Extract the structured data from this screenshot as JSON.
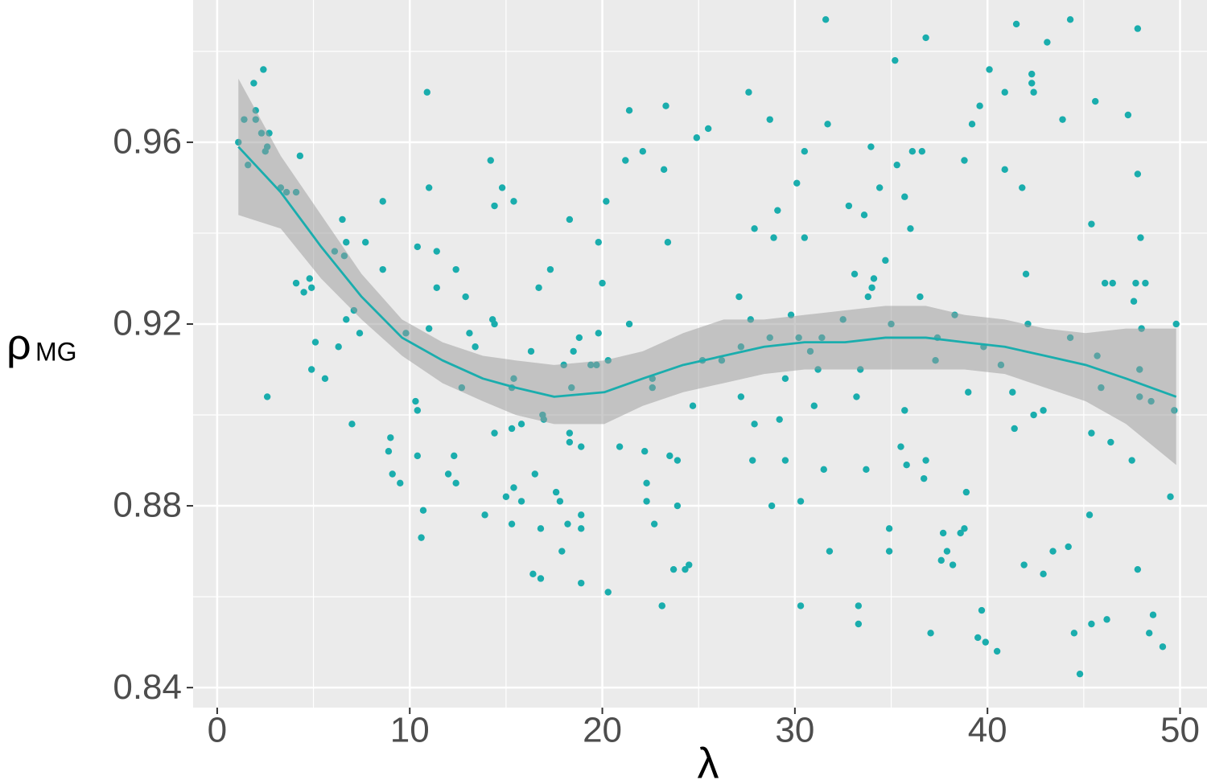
{
  "chart_data": {
    "type": "scatter",
    "xlabel": "λ",
    "ylabel": "ρ",
    "ylabel_subscript": "MG",
    "xlim": [
      -1.25,
      51.4
    ],
    "ylim": [
      0.8356,
      0.9913
    ],
    "xticks": [
      0,
      10,
      20,
      30,
      40,
      50
    ],
    "yticks": [
      0.84,
      0.88,
      0.92,
      0.96
    ],
    "xminor": [
      5,
      15,
      25,
      35,
      45
    ],
    "yminor": [
      0.86,
      0.9,
      0.94,
      0.98
    ],
    "grid": true,
    "color": "#1aadad",
    "x": [
      1.1,
      1.4,
      1.6,
      1.9,
      2.0,
      2.0,
      2.3,
      2.4,
      2.5,
      2.6,
      2.7,
      2.6,
      3.3,
      3.6,
      4.1,
      4.3,
      4.1,
      4.5,
      4.8,
      4.9,
      4.9,
      5.1,
      5.6,
      6.1,
      6.3,
      6.5,
      6.6,
      6.7,
      6.7,
      7.1,
      7.0,
      7.4,
      7.7,
      8.6,
      8.6,
      9.0,
      8.9,
      9.1,
      9.5,
      9.8,
      10.3,
      10.4,
      10.4,
      10.4,
      10.7,
      10.6,
      10.9,
      11.0,
      11.0,
      11.4,
      11.4,
      12.0,
      12.3,
      12.4,
      12.4,
      12.7,
      12.9,
      13.1,
      13.4,
      13.9,
      14.2,
      14.3,
      14.4,
      14.4,
      14.4,
      14.8,
      15.0,
      15.3,
      15.3,
      15.3,
      15.4,
      15.4,
      15.4,
      15.8,
      15.8,
      16.3,
      16.4,
      16.5,
      16.7,
      16.8,
      16.8,
      16.9,
      16.96,
      17.3,
      17.6,
      17.8,
      17.9,
      18.0,
      18.2,
      18.3,
      18.3,
      18.3,
      18.4,
      18.5,
      18.8,
      18.9,
      18.9,
      18.9,
      18.9,
      19.4,
      19.7,
      19.8,
      19.8,
      20.0,
      20.2,
      20.3,
      20.3,
      20.9,
      21.2,
      21.4,
      21.4,
      22.1,
      22.2,
      22.3,
      22.3,
      22.6,
      22.6,
      22.7,
      23.1,
      23.1,
      23.2,
      23.3,
      23.4,
      23.5,
      23.7,
      23.9,
      23.9,
      24.3,
      24.5,
      24.7,
      24.9,
      25.5,
      25.2,
      26.2,
      27.1,
      27.2,
      27.2,
      27.6,
      27.7,
      27.8,
      27.9,
      27.9,
      28.7,
      28.7,
      28.8,
      28.9,
      29.1,
      29.2,
      29.5,
      29.5,
      29.8,
      30.1,
      30.2,
      30.3,
      30.3,
      30.5,
      30.5,
      30.8,
      31.0,
      31.2,
      31.4,
      31.5,
      31.6,
      31.7,
      31.8,
      32.5,
      32.8,
      33.1,
      33.2,
      33.3,
      33.3,
      33.4,
      33.6,
      33.7,
      33.8,
      33.95,
      34.1,
      34.0,
      34.4,
      34.7,
      34.9,
      34.9,
      35.0,
      35.2,
      35.3,
      35.5,
      35.7,
      35.7,
      35.8,
      36.0,
      36.1,
      36.5,
      36.6,
      36.7,
      36.8,
      36.8,
      37.05,
      37.3,
      37.4,
      37.6,
      37.7,
      37.9,
      38.2,
      38.3,
      38.6,
      38.8,
      38.8,
      38.9,
      39.0,
      39.2,
      39.5,
      39.6,
      39.7,
      39.8,
      39.9,
      40.1,
      40.5,
      40.7,
      40.9,
      40.9,
      41.3,
      41.4,
      41.5,
      41.8,
      41.9,
      42.0,
      42.1,
      42.3,
      42.3,
      42.4,
      42.4,
      42.9,
      42.9,
      43.1,
      43.4,
      43.9,
      44.2,
      44.3,
      44.3,
      44.5,
      44.8,
      45.3,
      45.4,
      45.4,
      45.4,
      45.6,
      45.7,
      45.9,
      46.1,
      46.2,
      46.4,
      46.5,
      47.3,
      47.5,
      47.6,
      47.7,
      47.8,
      47.8,
      47.8,
      47.9,
      47.95,
      47.9,
      48.0,
      48.2,
      48.4,
      48.5,
      48.6,
      49.1,
      49.5,
      49.7,
      49.8
    ],
    "values": [
      0.96,
      0.965,
      0.955,
      0.973,
      0.967,
      0.965,
      0.962,
      0.976,
      0.958,
      0.959,
      0.962,
      0.904,
      0.95,
      0.949,
      0.949,
      0.957,
      0.929,
      0.927,
      0.93,
      0.928,
      0.91,
      0.916,
      0.908,
      0.936,
      0.915,
      0.943,
      0.935,
      0.938,
      0.921,
      0.923,
      0.898,
      0.918,
      0.938,
      0.947,
      0.932,
      0.895,
      0.892,
      0.887,
      0.885,
      0.918,
      0.903,
      0.901,
      0.937,
      0.891,
      0.879,
      0.873,
      0.971,
      0.919,
      0.95,
      0.936,
      0.928,
      0.887,
      0.891,
      0.932,
      0.885,
      0.906,
      0.926,
      0.918,
      0.915,
      0.878,
      0.956,
      0.921,
      0.92,
      0.946,
      0.896,
      0.95,
      0.882,
      0.906,
      0.897,
      0.876,
      0.947,
      0.884,
      0.908,
      0.881,
      0.898,
      0.914,
      0.865,
      0.887,
      0.928,
      0.875,
      0.864,
      0.9,
      0.899,
      0.932,
      0.883,
      0.881,
      0.87,
      0.911,
      0.876,
      0.894,
      0.943,
      0.896,
      0.906,
      0.914,
      0.917,
      0.893,
      0.878,
      0.875,
      0.863,
      0.911,
      0.911,
      0.918,
      0.938,
      0.929,
      0.947,
      0.912,
      0.861,
      0.893,
      0.956,
      0.967,
      0.92,
      0.958,
      0.892,
      0.885,
      0.881,
      0.908,
      0.906,
      0.876,
      0.858,
      0.858,
      0.954,
      0.968,
      0.938,
      0.891,
      0.866,
      0.89,
      0.88,
      0.866,
      0.867,
      0.902,
      0.961,
      0.963,
      0.912,
      0.912,
      0.926,
      0.915,
      0.904,
      0.971,
      0.921,
      0.89,
      0.898,
      0.941,
      0.917,
      0.965,
      0.88,
      0.939,
      0.945,
      0.899,
      0.908,
      0.89,
      0.922,
      0.951,
      0.917,
      0.881,
      0.858,
      0.939,
      0.958,
      0.914,
      0.902,
      0.91,
      0.917,
      0.888,
      0.987,
      0.964,
      0.87,
      0.921,
      0.946,
      0.931,
      0.904,
      0.858,
      0.854,
      0.91,
      0.944,
      0.888,
      0.926,
      0.959,
      0.93,
      0.928,
      0.95,
      0.934,
      0.875,
      0.87,
      0.92,
      0.978,
      0.955,
      0.893,
      0.948,
      0.901,
      0.889,
      0.941,
      0.958,
      0.926,
      0.958,
      0.886,
      0.89,
      0.983,
      0.852,
      0.912,
      0.917,
      0.868,
      0.874,
      0.87,
      0.867,
      0.922,
      0.874,
      0.875,
      0.956,
      0.883,
      0.905,
      0.964,
      0.851,
      0.968,
      0.857,
      0.915,
      0.85,
      0.976,
      0.848,
      0.911,
      0.954,
      0.971,
      0.905,
      0.897,
      0.986,
      0.95,
      0.867,
      0.931,
      0.92,
      0.975,
      0.973,
      0.971,
      0.9,
      0.865,
      0.901,
      0.982,
      0.87,
      0.965,
      0.871,
      0.987,
      0.917,
      0.852,
      0.843,
      0.878,
      0.942,
      0.854,
      0.896,
      0.969,
      0.913,
      0.906,
      0.929,
      0.855,
      0.894,
      0.929,
      0.966,
      0.89,
      0.925,
      0.929,
      0.985,
      0.953,
      0.866,
      0.91,
      0.939,
      0.904,
      0.919,
      0.929,
      0.852,
      0.903,
      0.856,
      0.849,
      0.882,
      0.901,
      0.92
    ],
    "smooth": {
      "color": "#1aadad",
      "band_color": "#999999",
      "x": [
        1.1,
        3.3,
        5.4,
        7.5,
        9.6,
        11.7,
        13.8,
        15.5,
        17.5,
        20.1,
        22.1,
        24.2,
        26.3,
        28.4,
        30.5,
        32.6,
        34.7,
        36.8,
        38.8,
        40.9,
        43.0,
        45.1,
        47.2,
        49.8
      ],
      "values": [
        0.959,
        0.949,
        0.937,
        0.926,
        0.917,
        0.912,
        0.908,
        0.906,
        0.904,
        0.905,
        0.908,
        0.911,
        0.913,
        0.915,
        0.916,
        0.916,
        0.917,
        0.917,
        0.916,
        0.915,
        0.913,
        0.911,
        0.908,
        0.904
      ],
      "lower": [
        0.944,
        0.941,
        0.93,
        0.921,
        0.913,
        0.907,
        0.903,
        0.9,
        0.898,
        0.898,
        0.902,
        0.905,
        0.907,
        0.909,
        0.91,
        0.91,
        0.91,
        0.91,
        0.91,
        0.909,
        0.906,
        0.903,
        0.898,
        0.889
      ],
      "upper": [
        0.974,
        0.957,
        0.944,
        0.931,
        0.921,
        0.916,
        0.913,
        0.912,
        0.911,
        0.912,
        0.914,
        0.918,
        0.921,
        0.921,
        0.922,
        0.923,
        0.924,
        0.924,
        0.922,
        0.921,
        0.919,
        0.918,
        0.919,
        0.919
      ]
    }
  }
}
